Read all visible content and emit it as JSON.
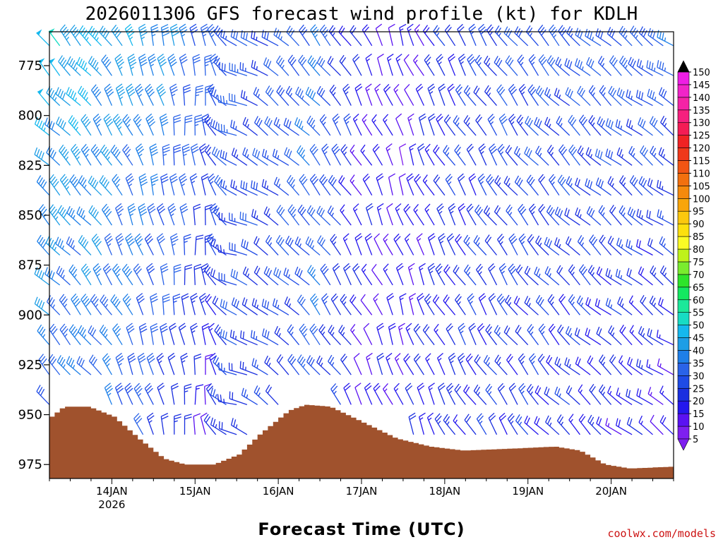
{
  "chart_data": {
    "type": "wind-barb-profile",
    "title": "2026011306 GFS forecast wind profile (kt) for KDLH",
    "xlabel": "Forecast Time (UTC)",
    "ylabel": "",
    "y_ticks": [
      775,
      800,
      825,
      850,
      875,
      900,
      925,
      950,
      975
    ],
    "y_range": [
      758,
      982
    ],
    "x_range": [
      13.25,
      20.75
    ],
    "x_ticks": [
      {
        "day": 14,
        "label": "14JAN",
        "sub": "2026"
      },
      {
        "day": 15,
        "label": "15JAN",
        "sub": ""
      },
      {
        "day": 16,
        "label": "16JAN",
        "sub": ""
      },
      {
        "day": 17,
        "label": "17JAN",
        "sub": ""
      },
      {
        "day": 18,
        "label": "18JAN",
        "sub": ""
      },
      {
        "day": 19,
        "label": "19JAN",
        "sub": ""
      },
      {
        "day": 20,
        "label": "20JAN",
        "sub": ""
      }
    ],
    "levels": [
      765,
      780,
      795,
      810,
      825,
      840,
      855,
      870,
      885,
      900,
      915,
      930,
      945,
      960,
      975
    ],
    "times_hours_step": 3,
    "wind_keyframes": [
      {
        "t": 13.25,
        "dir": 315,
        "spd_top": 48,
        "spd_bot": 30
      },
      {
        "t": 13.75,
        "dir": 320,
        "spd_top": 44,
        "spd_bot": 32
      },
      {
        "t": 14.25,
        "dir": 335,
        "spd_top": 42,
        "spd_bot": 30
      },
      {
        "t": 14.75,
        "dir": 350,
        "spd_top": 38,
        "spd_bot": 20
      },
      {
        "t": 15.1,
        "dir": 355,
        "spd_top": 32,
        "spd_bot": 12
      },
      {
        "t": 15.5,
        "dir": 290,
        "spd_top": 30,
        "spd_bot": 25
      },
      {
        "t": 15.9,
        "dir": 305,
        "spd_top": 28,
        "spd_bot": 22
      },
      {
        "t": 16.5,
        "dir": 320,
        "spd_top": 35,
        "spd_bot": 30
      },
      {
        "t": 17.0,
        "dir": 330,
        "spd_top": 18,
        "spd_bot": 15
      },
      {
        "t": 17.5,
        "dir": 340,
        "spd_top": 12,
        "spd_bot": 18
      },
      {
        "t": 18.0,
        "dir": 330,
        "spd_top": 22,
        "spd_bot": 20
      },
      {
        "t": 18.75,
        "dir": 325,
        "spd_top": 28,
        "spd_bot": 22
      },
      {
        "t": 19.5,
        "dir": 315,
        "spd_top": 30,
        "spd_bot": 20
      },
      {
        "t": 20.75,
        "dir": 305,
        "spd_top": 32,
        "spd_bot": 14
      }
    ],
    "terrain_surface_pressure": [
      {
        "t": 13.25,
        "p": 951
      },
      {
        "t": 13.4,
        "p": 946
      },
      {
        "t": 13.7,
        "p": 946
      },
      {
        "t": 14.0,
        "p": 951
      },
      {
        "t": 14.3,
        "p": 962
      },
      {
        "t": 14.6,
        "p": 972
      },
      {
        "t": 14.85,
        "p": 975
      },
      {
        "t": 15.2,
        "p": 975
      },
      {
        "t": 15.5,
        "p": 970
      },
      {
        "t": 15.75,
        "p": 960
      },
      {
        "t": 16.1,
        "p": 948
      },
      {
        "t": 16.3,
        "p": 945
      },
      {
        "t": 16.6,
        "p": 946
      },
      {
        "t": 17.0,
        "p": 954
      },
      {
        "t": 17.4,
        "p": 962
      },
      {
        "t": 17.8,
        "p": 966
      },
      {
        "t": 18.2,
        "p": 968
      },
      {
        "t": 18.8,
        "p": 967
      },
      {
        "t": 19.3,
        "p": 966
      },
      {
        "t": 19.6,
        "p": 968
      },
      {
        "t": 19.9,
        "p": 975
      },
      {
        "t": 20.2,
        "p": 977
      },
      {
        "t": 20.75,
        "p": 976
      }
    ],
    "colorbar": {
      "ticks": [
        5,
        10,
        15,
        20,
        25,
        30,
        35,
        40,
        45,
        50,
        55,
        60,
        65,
        70,
        75,
        80,
        85,
        90,
        95,
        100,
        105,
        110,
        115,
        120,
        125,
        130,
        135,
        140,
        145,
        150
      ],
      "colors": [
        "#7e1ff0",
        "#5a12f2",
        "#2417ee",
        "#1a2fe0",
        "#1f4be6",
        "#2a63e8",
        "#1e7fe8",
        "#1e9ee6",
        "#15b8ee",
        "#18dcc4",
        "#1ce89a",
        "#14e860",
        "#2ee42a",
        "#7aec2e",
        "#bff21a",
        "#fbfb25",
        "#fce00e",
        "#fbc80e",
        "#f8a50a",
        "#f58a0c",
        "#f2700e",
        "#f25514",
        "#f0381a",
        "#f02324",
        "#f41c55",
        "#f6207e",
        "#f523a6",
        "#f124c8",
        "#ee1ee4"
      ],
      "over_color": "#000000",
      "under_color": "#7e1ff0"
    },
    "terrain_color": "#a0522d"
  },
  "credit": "coolwx.com/models"
}
